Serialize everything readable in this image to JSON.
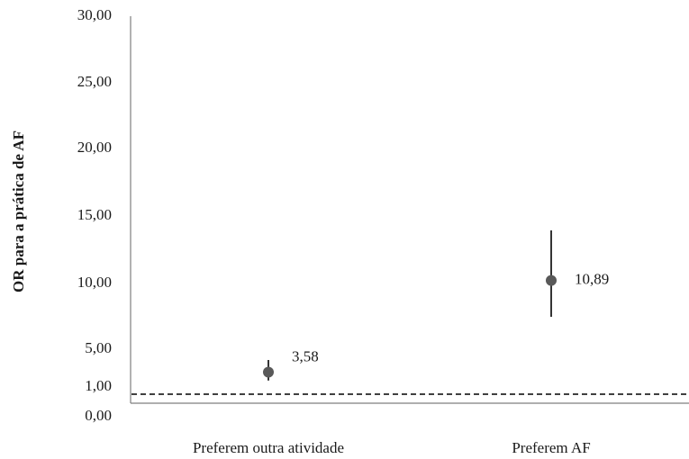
{
  "chart_data": {
    "type": "scatter",
    "ylabel": "OR para a prática de AF",
    "ytick_labels": [
      "0,00",
      "1,00",
      "5,00",
      "10,00",
      "15,00",
      "20,00",
      "25,00",
      "30,00"
    ],
    "categories": [
      "Preferem outra atividade",
      "Preferem AF"
    ],
    "points": [
      {
        "category": "Preferem outra atividade",
        "value": 3.58,
        "label": "3,58",
        "ci_low": 2.6,
        "ci_high": 5.0
      },
      {
        "category": "Preferem AF",
        "value": 10.89,
        "label": "10,89",
        "ci_low": 8.2,
        "ci_high": 14.6
      }
    ],
    "reference_line": {
      "value": 1.0,
      "style": "dashed"
    },
    "grid": false,
    "legend": "none",
    "colors": {
      "point": "#595959",
      "axis": "#7f7f7f",
      "ci": "#000000",
      "reference": "#000000"
    }
  }
}
